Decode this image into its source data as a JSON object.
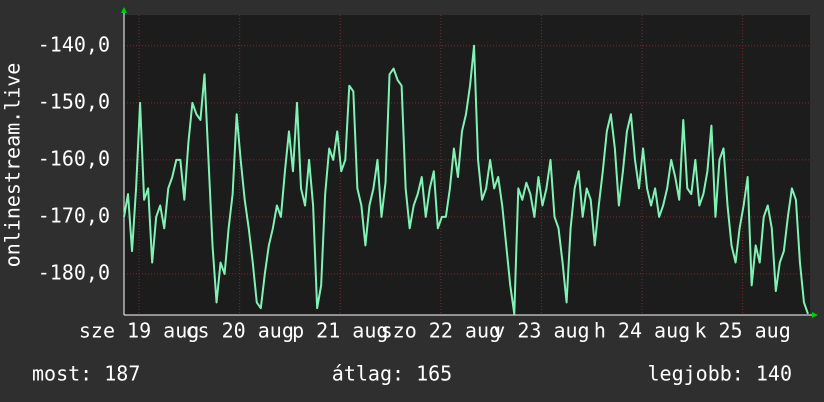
{
  "chart_data": {
    "type": "line",
    "y_label": "onlinestream.live",
    "xlim": [
      18.85,
      25.67
    ],
    "xticks": [
      {
        "value": 19,
        "label": "sze 19 aug"
      },
      {
        "value": 20,
        "label": "cs 20 aug"
      },
      {
        "value": 21,
        "label": "p 21 aug"
      },
      {
        "value": 22,
        "label": "szo 22 aug"
      },
      {
        "value": 23,
        "label": "v 23 aug"
      },
      {
        "value": 24,
        "label": "h 24 aug"
      },
      {
        "value": 25,
        "label": "k 25 aug"
      }
    ],
    "ylim": [
      -187.2,
      -134.6
    ],
    "yticks": [
      {
        "value": -140,
        "label": "-140,0"
      },
      {
        "value": -150,
        "label": "-150,0"
      },
      {
        "value": -160,
        "label": "-160,0"
      },
      {
        "value": -170,
        "label": "-170,0"
      },
      {
        "value": -180,
        "label": "-180,0"
      }
    ],
    "grid": true,
    "x": [
      18.85,
      18.89,
      18.93,
      18.97,
      19.01,
      19.05,
      19.09,
      19.13,
      19.17,
      19.21,
      19.25,
      19.29,
      19.33,
      19.37,
      19.41,
      19.45,
      19.49,
      19.53,
      19.57,
      19.61,
      19.65,
      19.69,
      19.73,
      19.77,
      19.81,
      19.85,
      19.89,
      19.93,
      19.97,
      20.01,
      20.05,
      20.09,
      20.13,
      20.17,
      20.21,
      20.25,
      20.29,
      20.33,
      20.37,
      20.41,
      20.45,
      20.49,
      20.53,
      20.57,
      20.61,
      20.65,
      20.69,
      20.73,
      20.77,
      20.81,
      20.85,
      20.89,
      20.93,
      20.97,
      21.01,
      21.05,
      21.09,
      21.13,
      21.17,
      21.21,
      21.25,
      21.29,
      21.33,
      21.37,
      21.41,
      21.45,
      21.49,
      21.53,
      21.57,
      21.61,
      21.65,
      21.69,
      21.73,
      21.77,
      21.81,
      21.85,
      21.89,
      21.93,
      21.97,
      22.01,
      22.05,
      22.09,
      22.13,
      22.17,
      22.21,
      22.25,
      22.29,
      22.33,
      22.37,
      22.41,
      22.45,
      22.49,
      22.53,
      22.57,
      22.61,
      22.65,
      22.69,
      22.73,
      22.77,
      22.81,
      22.85,
      22.89,
      22.93,
      22.97,
      23.01,
      23.05,
      23.09,
      23.13,
      23.17,
      23.21,
      23.25,
      23.29,
      23.33,
      23.37,
      23.41,
      23.45,
      23.49,
      23.53,
      23.57,
      23.61,
      23.65,
      23.69,
      23.73,
      23.77,
      23.81,
      23.85,
      23.89,
      23.93,
      23.97,
      24.01,
      24.05,
      24.09,
      24.13,
      24.17,
      24.21,
      24.25,
      24.29,
      24.33,
      24.37,
      24.41,
      24.45,
      24.49,
      24.53,
      24.57,
      24.61,
      24.65,
      24.69,
      24.73,
      24.77,
      24.81,
      24.85,
      24.89,
      24.93,
      24.97,
      25.01,
      25.05,
      25.09,
      25.13,
      25.17,
      25.21,
      25.25,
      25.29,
      25.33,
      25.37,
      25.41,
      25.45,
      25.49,
      25.53,
      25.57,
      25.61,
      25.65
    ],
    "series": [
      {
        "color": "#80f2b4",
        "values": [
          -170,
          -166,
          -176,
          -165,
          -150,
          -167,
          -165,
          -178,
          -170,
          -168,
          -172,
          -165,
          -163,
          -160,
          -160,
          -167,
          -157,
          -150,
          -152,
          -153,
          -145,
          -160,
          -175,
          -185,
          -178,
          -180,
          -172,
          -166,
          -152,
          -160,
          -167,
          -172,
          -178,
          -185,
          -186,
          -180,
          -175,
          -172,
          -168,
          -170,
          -162,
          -155,
          -162,
          -150,
          -165,
          -168,
          -160,
          -168,
          -186,
          -182,
          -166,
          -158,
          -160,
          -155,
          -162,
          -160,
          -147,
          -148,
          -165,
          -168,
          -175,
          -168,
          -165,
          -160,
          -170,
          -164,
          -145,
          -144,
          -146,
          -147,
          -165,
          -172,
          -168,
          -166,
          -163,
          -170,
          -165,
          -162,
          -172,
          -170,
          -170,
          -165,
          -158,
          -163,
          -155,
          -152,
          -147,
          -140,
          -160,
          -167,
          -165,
          -160,
          -165,
          -163,
          -168,
          -175,
          -182,
          -187,
          -165,
          -167,
          -164,
          -166,
          -170,
          -163,
          -168,
          -165,
          -160,
          -170,
          -172,
          -178,
          -185,
          -172,
          -165,
          -162,
          -170,
          -165,
          -167,
          -175,
          -168,
          -162,
          -155,
          -152,
          -158,
          -168,
          -162,
          -155,
          -152,
          -160,
          -165,
          -158,
          -165,
          -168,
          -165,
          -170,
          -168,
          -165,
          -160,
          -163,
          -167,
          -153,
          -165,
          -166,
          -160,
          -168,
          -166,
          -162,
          -154,
          -170,
          -160,
          -158,
          -168,
          -175,
          -178,
          -172,
          -168,
          -163,
          -182,
          -175,
          -178,
          -170,
          -168,
          -172,
          -183,
          -178,
          -176,
          -170,
          -165,
          -167,
          -178,
          -185,
          -187
        ]
      }
    ],
    "footer": [
      "most: 187",
      "átlag: 165",
      "legjobb: 140"
    ]
  }
}
